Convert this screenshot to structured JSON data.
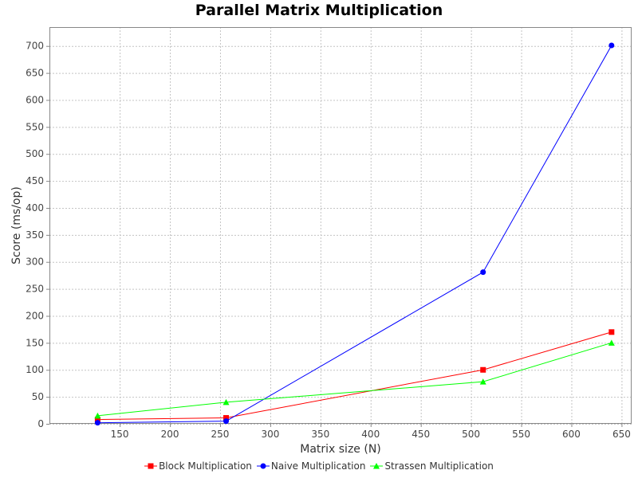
{
  "chart_data": {
    "type": "line",
    "title": "Parallel Matrix Multiplication",
    "xlabel": "Matrix size (N)",
    "ylabel": "Score (ms/op)",
    "xlim": [
      80,
      660
    ],
    "ylim": [
      0,
      735
    ],
    "xticks": [
      150,
      200,
      250,
      300,
      350,
      400,
      450,
      500,
      550,
      600,
      650
    ],
    "yticks": [
      0,
      50,
      100,
      150,
      200,
      250,
      300,
      350,
      400,
      450,
      500,
      550,
      600,
      650,
      700
    ],
    "grid": true,
    "legend_position": "bottom-center",
    "series": [
      {
        "name": "Block Multiplication",
        "color": "#ff0000",
        "marker": "square",
        "x": [
          128,
          256,
          512,
          640
        ],
        "y": [
          8,
          11,
          100,
          170
        ]
      },
      {
        "name": "Naive Multiplication",
        "color": "#0000ff",
        "marker": "circle",
        "x": [
          128,
          256,
          512,
          640
        ],
        "y": [
          2,
          5,
          281,
          701
        ]
      },
      {
        "name": "Strassen Multiplication",
        "color": "#00ff00",
        "marker": "triangle",
        "x": [
          128,
          256,
          512,
          640
        ],
        "y": [
          15,
          40,
          78,
          150
        ]
      }
    ]
  }
}
